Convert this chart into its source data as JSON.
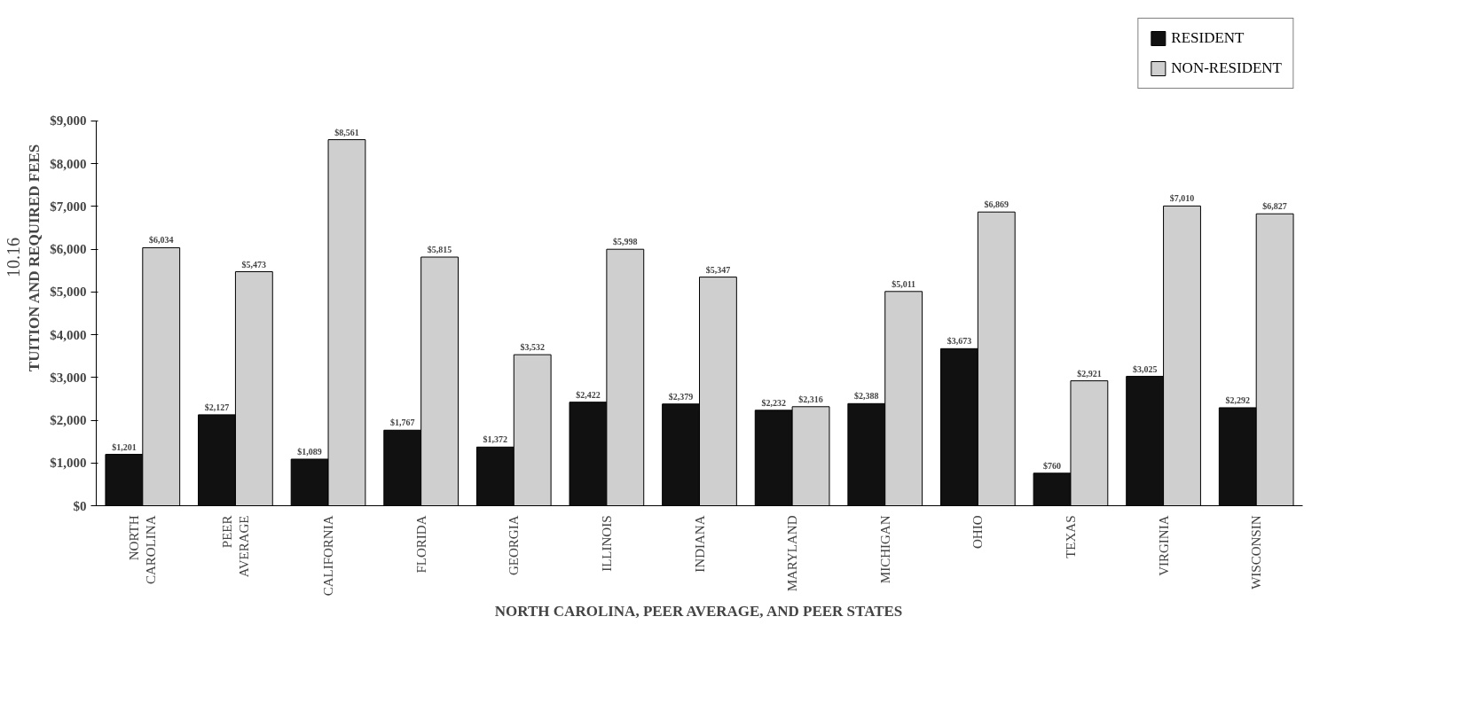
{
  "chart_data": {
    "type": "bar",
    "xlabel": "NORTH CAROLINA, PEER AVERAGE, AND PEER STATES",
    "ylabel": "TUITION AND REQUIRED FEES",
    "categories": [
      "NORTH CAROLINA",
      "PEER AVERAGE",
      "CALIFORNIA",
      "FLORIDA",
      "GEORGIA",
      "ILLINOIS",
      "INDIANA",
      "MARYLAND",
      "MICHIGAN",
      "OHIO",
      "TEXAS",
      "VIRGINIA",
      "WISCONSIN"
    ],
    "series": [
      {
        "name": "RESIDENT",
        "color": "#111111",
        "values": [
          1201,
          2127,
          1089,
          1767,
          1372,
          2422,
          2379,
          2232,
          2388,
          3673,
          760,
          3025,
          2292
        ],
        "value_labels": [
          "$1,201",
          "$2,127",
          "$1,089",
          "$1,767",
          "$1,372",
          "$2,422",
          "$2,379",
          "$2,232",
          "$2,388",
          "$3,673",
          "$760",
          "$3,025",
          "$2,292"
        ]
      },
      {
        "name": "NON-RESIDENT",
        "color": "#cfcfcf",
        "values": [
          6034,
          5473,
          8561,
          5815,
          3532,
          5998,
          5347,
          2316,
          5011,
          6869,
          2921,
          7010,
          6827
        ],
        "value_labels": [
          "$6,034",
          "$5,473",
          "$8,561",
          "$5,815",
          "$3,532",
          "$5,998",
          "$5,347",
          "$2,316",
          "$5,011",
          "$6,869",
          "$2,921",
          "$7,010",
          "$6,827"
        ]
      }
    ],
    "ylim": [
      0,
      9000
    ],
    "yticks": [
      {
        "value": 0,
        "label": "$0"
      },
      {
        "value": 1000,
        "label": "$1,000"
      },
      {
        "value": 2000,
        "label": "$2,000"
      },
      {
        "value": 3000,
        "label": "$3,000"
      },
      {
        "value": 4000,
        "label": "$4,000"
      },
      {
        "value": 5000,
        "label": "$5,000"
      },
      {
        "value": 6000,
        "label": "$6,000"
      },
      {
        "value": 7000,
        "label": "$7,000"
      },
      {
        "value": 8000,
        "label": "$8,000"
      },
      {
        "value": 9000,
        "label": "$9,000"
      }
    ],
    "grid": false,
    "legend": "top right",
    "annotations": [
      "10.16"
    ]
  }
}
